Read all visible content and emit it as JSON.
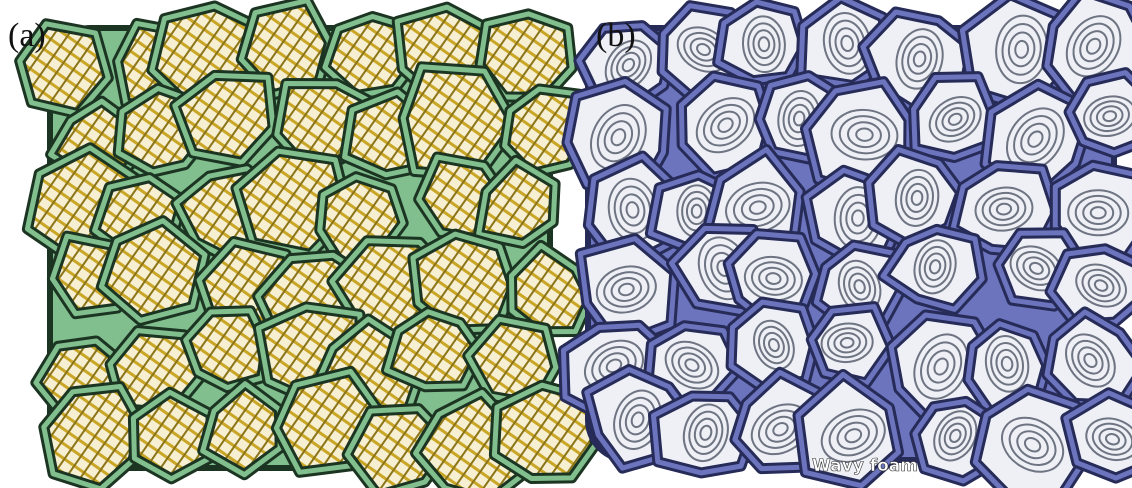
{
  "panels": [
    {
      "label": "(a)"
    },
    {
      "label": "(b)",
      "caption": "Wavy foam"
    }
  ]
}
